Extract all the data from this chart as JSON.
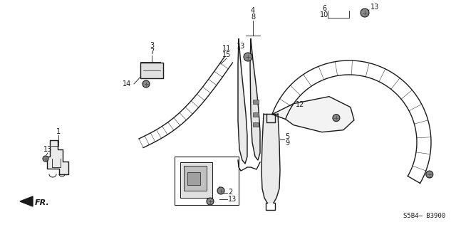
{
  "bg_color": "#ffffff",
  "line_color": "#1a1a1a",
  "diagram_code": "S5B4– B3900",
  "fr_label": "FR.",
  "figsize": [
    6.4,
    3.19
  ],
  "dpi": 100
}
